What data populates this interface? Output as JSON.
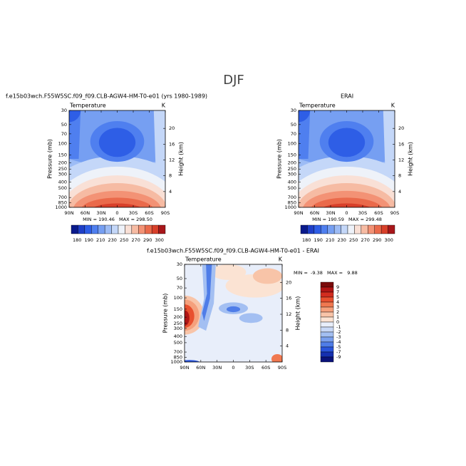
{
  "title": "DJF",
  "panels": [
    {
      "title": "f.e15b03wch.F55W5SC.f09_f09.CLB-AGW4-HM-T0-e01 (yrs 1980-1989)",
      "variable": "Temperature",
      "units": "K",
      "y_label": "Pressure (mb)",
      "y2_label": "Height (km)",
      "pressure_ticks": [
        30,
        50,
        70,
        100,
        150,
        200,
        250,
        300,
        400,
        500,
        700,
        850,
        1000
      ],
      "height_ticks": [
        20,
        16,
        12,
        8,
        4
      ],
      "lat_ticks": [
        "90N",
        "60N",
        "30N",
        "0",
        "30S",
        "60S",
        "90S"
      ],
      "stats": "MIN = 190.46   MAX = 298.50",
      "colorbar": {
        "labels": [
          "180",
          "190",
          "210",
          "230",
          "250",
          "270",
          "290",
          "300"
        ],
        "colors": [
          "#0a1a8c",
          "#1f3fc8",
          "#2e5ee6",
          "#4f7fef",
          "#769ff2",
          "#9dbcf5",
          "#c4d7f8",
          "#eef2f9",
          "#f9e0d6",
          "#f6bba3",
          "#f39275",
          "#ea6a4b",
          "#d8402a",
          "#a8161a"
        ]
      }
    },
    {
      "title": "ERAI",
      "variable": "Temperature",
      "units": "K",
      "y_label": "Pressure (mb)",
      "y2_label": "Height (km)",
      "pressure_ticks": [
        30,
        50,
        70,
        100,
        150,
        200,
        250,
        300,
        400,
        500,
        700,
        850,
        1000
      ],
      "height_ticks": [
        20,
        16,
        12,
        8,
        4
      ],
      "lat_ticks": [
        "90N",
        "60N",
        "30N",
        "0",
        "30S",
        "60S",
        "90S"
      ],
      "stats": "MIN = 190.59   MAX = 299.48",
      "colorbar": {
        "labels": [
          "180",
          "190",
          "210",
          "230",
          "250",
          "270",
          "290",
          "300"
        ],
        "colors": [
          "#0a1a8c",
          "#1f3fc8",
          "#2e5ee6",
          "#4f7fef",
          "#769ff2",
          "#9dbcf5",
          "#c4d7f8",
          "#eef2f9",
          "#f9e0d6",
          "#f6bba3",
          "#f39275",
          "#ea6a4b",
          "#d8402a",
          "#a8161a"
        ]
      }
    },
    {
      "title": "f.e15b03wch.F55W5SC.f09_f09.CLB-AGW4-HM-T0-e01 - ERAI",
      "variable": "Temperature",
      "units": "K",
      "y_label": "Pressure (mb)",
      "y2_label": "Height (km)",
      "pressure_ticks": [
        30,
        50,
        70,
        100,
        150,
        200,
        250,
        300,
        400,
        500,
        700,
        850,
        1000
      ],
      "height_ticks": [
        20,
        16,
        12,
        8,
        4
      ],
      "lat_ticks": [
        "90N",
        "60N",
        "30N",
        "0",
        "30S",
        "60S",
        "90S"
      ],
      "stats": "MIN =  -9.38   MAX =   9.88",
      "colorbar": {
        "labels": [
          "9",
          "7",
          "5",
          "4",
          "3",
          "2",
          "1",
          "0",
          "-1",
          "-2",
          "-3",
          "-4",
          "-5",
          "-7",
          "-9"
        ],
        "colors": [
          "#7a0a0a",
          "#b01515",
          "#d22c1f",
          "#e8502f",
          "#f07850",
          "#f5a07c",
          "#f8c4a8",
          "#fbe3d3",
          "#e8eefa",
          "#c8d8f6",
          "#a3bff2",
          "#7aa0ee",
          "#4f7de8",
          "#2a55dc",
          "#1530b0",
          "#0a137a"
        ]
      }
    }
  ]
}
